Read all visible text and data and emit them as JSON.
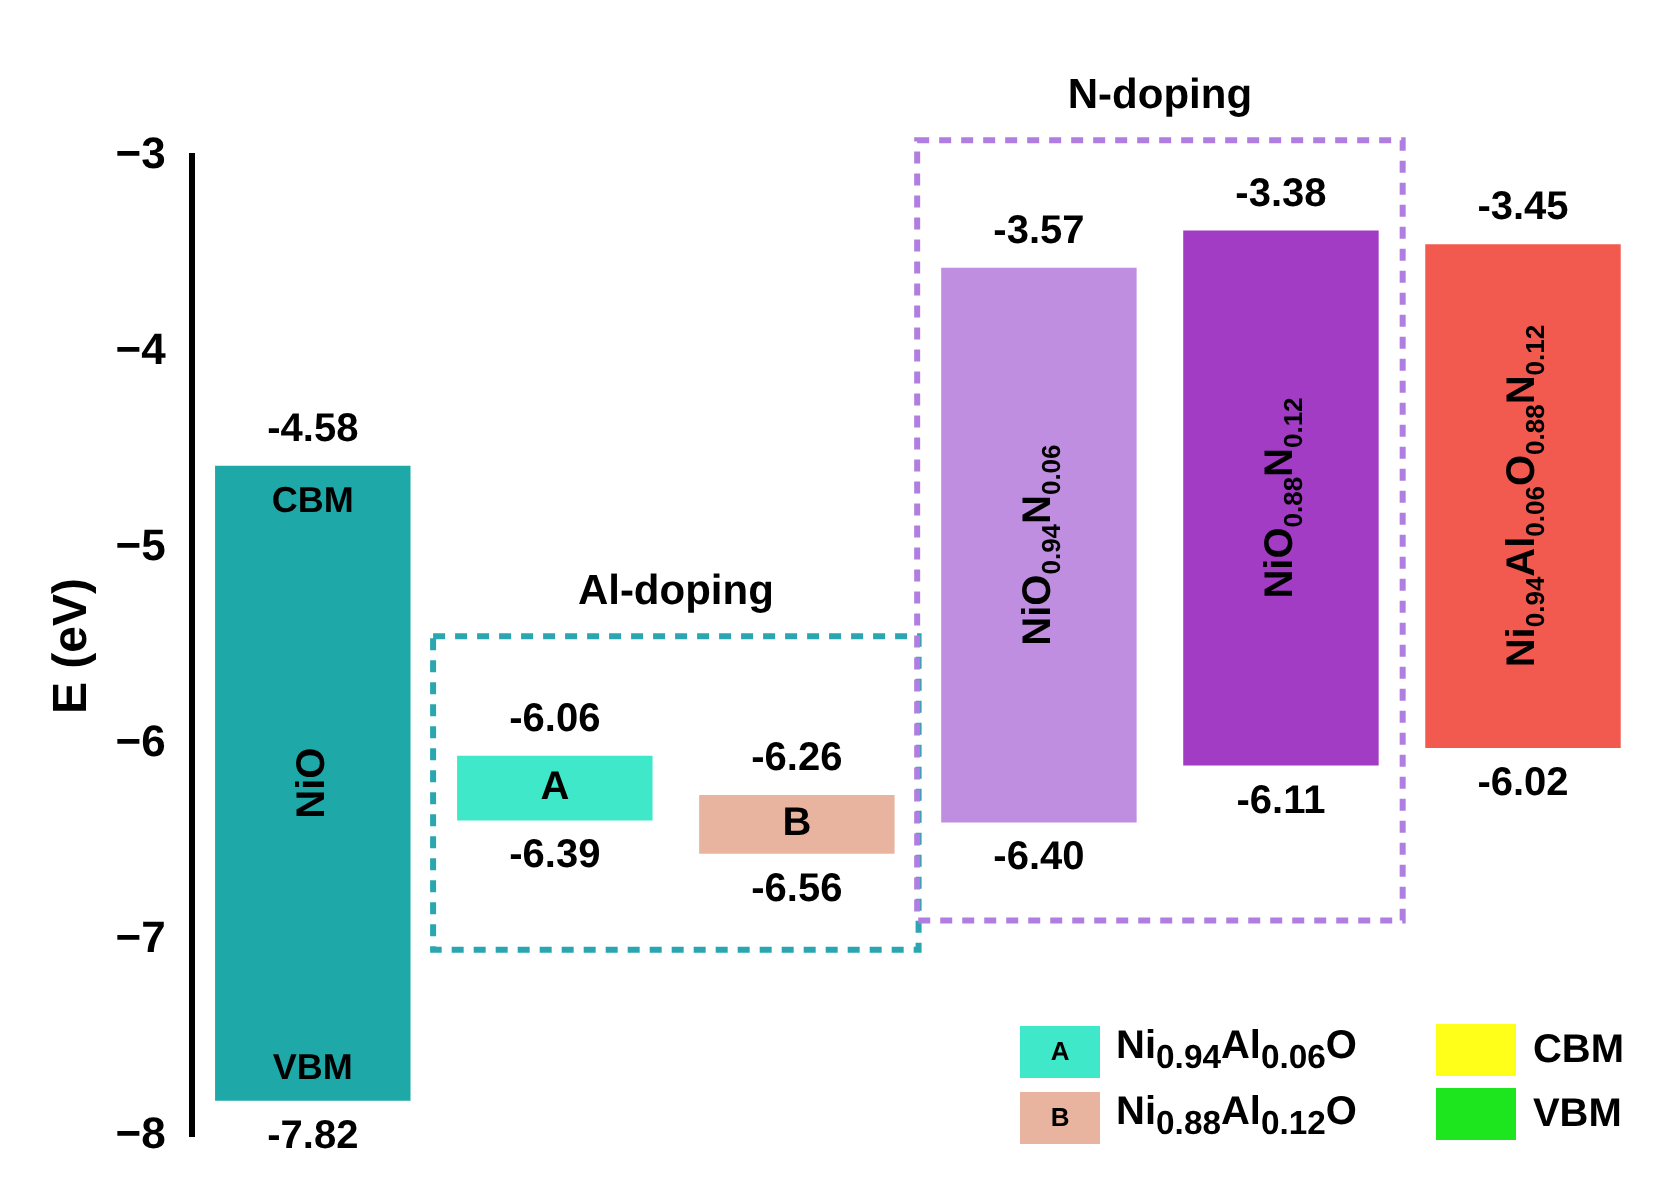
{
  "chart_data": {
    "type": "bar",
    "ylabel": "E (eV)",
    "categories": [
      "NiO",
      "A",
      "B",
      "NiO$_{0.94}$N$_{0.06}$",
      "NiO$_{0.88}$N$_{0.12}$",
      "Ni$_{0.94}$Al$_{0.06}$O$_{0.88}$N$_{0.12}$"
    ],
    "base": [
      -7.82,
      -6.39,
      -6.56,
      -6.4,
      -6.11,
      -6.02
    ],
    "values": [
      3.24,
      0.33,
      0.3,
      2.83,
      2.73,
      2.57
    ],
    "colors": [
      "#1fa8a8",
      "#3ee8c8",
      "#e8b4a0",
      "#c08ee0",
      "#a23cc4",
      "#f25a50"
    ],
    "ylim": [
      -8,
      -3
    ],
    "yticks": [
      -8,
      -7,
      -6,
      -5,
      -4,
      -3
    ],
    "grid": false,
    "tick_labels": "y",
    "annotations": [
      "Al-doping",
      "N-doping",
      "CBM",
      "VBM",
      "Ni$_{0.94}$Al$_{0.06}$O",
      "Ni$_{0.88}$Al$_{0.12}$O",
      "CBM",
      "VBM",
      {
        "text": "-4.58",
        "x": "NiO",
        "y": -4.58
      },
      {
        "text": "-7.82",
        "x": "NiO",
        "y": -7.82
      },
      {
        "text": "-6.06",
        "x": "A",
        "y": -6.06
      },
      {
        "text": "-6.39",
        "x": "A",
        "y": -6.39
      },
      {
        "text": "-6.26",
        "x": "B",
        "y": -6.26
      },
      {
        "text": "-6.56",
        "x": "B",
        "y": -6.56
      },
      {
        "text": "-3.57",
        "x": "NiO$_{0.94}$N$_{0.06}$",
        "y": -3.57
      },
      {
        "text": "-6.40",
        "x": "NiO$_{0.94}$N$_{0.06}$",
        "y": -6.4
      },
      {
        "text": "-3.38",
        "x": "NiO$_{0.88}$N$_{0.12}$",
        "y": -3.38
      },
      {
        "text": "-6.11",
        "x": "NiO$_{0.88}$N$_{0.12}$",
        "y": -6.11
      },
      {
        "text": "-3.45",
        "x": "Ni$_{0.94}$Al$_{0.06}$O$_{0.88}$N$_{0.12}$",
        "y": -3.45
      },
      {
        "text": "-6.02",
        "x": "Ni$_{0.94}$Al$_{0.06}$O$_{0.88}$N$_{0.12}$",
        "y": -6.02
      }
    ]
  }
}
